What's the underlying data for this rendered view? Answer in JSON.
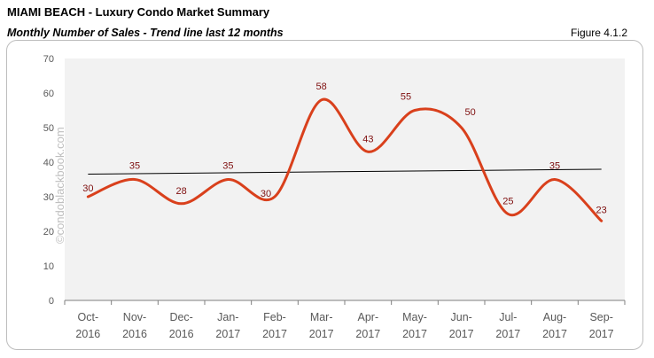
{
  "header": {
    "title": "MIAMI BEACH - Luxury Condo Market Summary",
    "subtitle": "Monthly Number of Sales - Trend line last 12 months",
    "figure_label": "Figure 4.1.2"
  },
  "watermark": "©condoblackbook.com",
  "chart_data": {
    "type": "line",
    "categories": [
      [
        "Oct-",
        "2016"
      ],
      [
        "Nov-",
        "2016"
      ],
      [
        "Dec-",
        "2016"
      ],
      [
        "Jan-",
        "2017"
      ],
      [
        "Feb-",
        "2017"
      ],
      [
        "Mar-",
        "2017"
      ],
      [
        "Apr-",
        "2017"
      ],
      [
        "May-",
        "2017"
      ],
      [
        "Jun-",
        "2017"
      ],
      [
        "Jul-",
        "2017"
      ],
      [
        "Aug-",
        "2017"
      ],
      [
        "Sep-",
        "2017"
      ]
    ],
    "series": [
      {
        "values": [
          30,
          35,
          28,
          35,
          30,
          58,
          43,
          55,
          50,
          25,
          35,
          23
        ],
        "color": "#d9401c",
        "smooth": true,
        "data_labels": true
      }
    ],
    "trendline": {
      "type": "linear",
      "color": "#000000"
    },
    "ylim": [
      0,
      70
    ],
    "yticks": [
      0,
      10,
      20,
      30,
      40,
      50,
      60,
      70
    ],
    "plot_background": "#f2f2f2",
    "grid": false,
    "legend": "none"
  }
}
